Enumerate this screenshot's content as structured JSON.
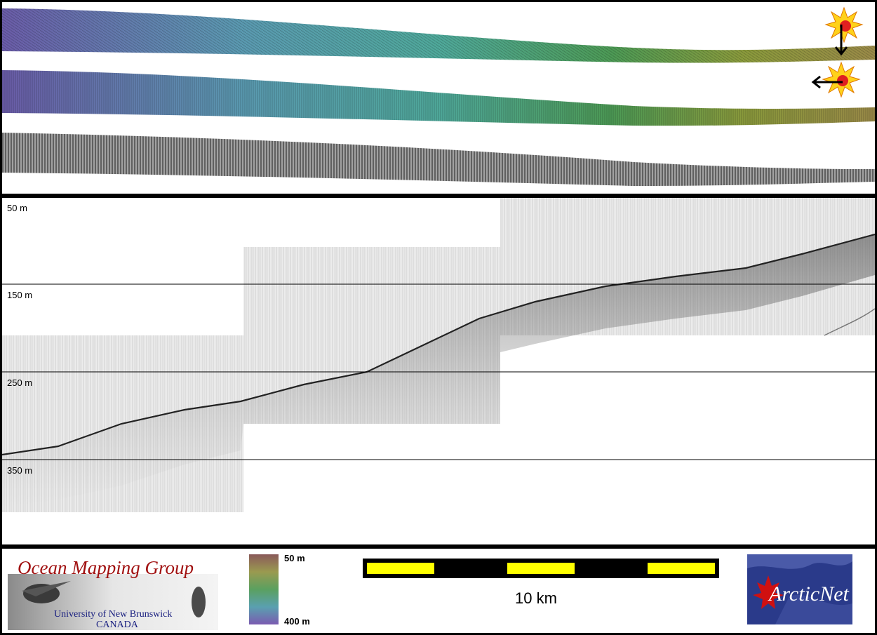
{
  "depth_axis": {
    "labels": [
      "50 m",
      "150 m",
      "250 m",
      "350 m"
    ]
  },
  "legend": {
    "organization": "Ocean Mapping Group",
    "university": "University of New Brunswick",
    "country": "CANADA",
    "colorbar": {
      "min_label": "400 m",
      "max_label": "50 m"
    },
    "scalebar": {
      "label": "10 km",
      "color": "#ffff00"
    },
    "partner_logo": {
      "text": "ArcticNet"
    }
  },
  "icons": {
    "sun_vertical": "sun-down-arrow-icon",
    "sun_horizontal": "sun-left-arrow-icon"
  },
  "colors": {
    "background": "#000000",
    "panel": "#ffffff",
    "omg_red": "#a01010",
    "unb_blue": "#1a2080",
    "sun": "#ffd21a"
  }
}
